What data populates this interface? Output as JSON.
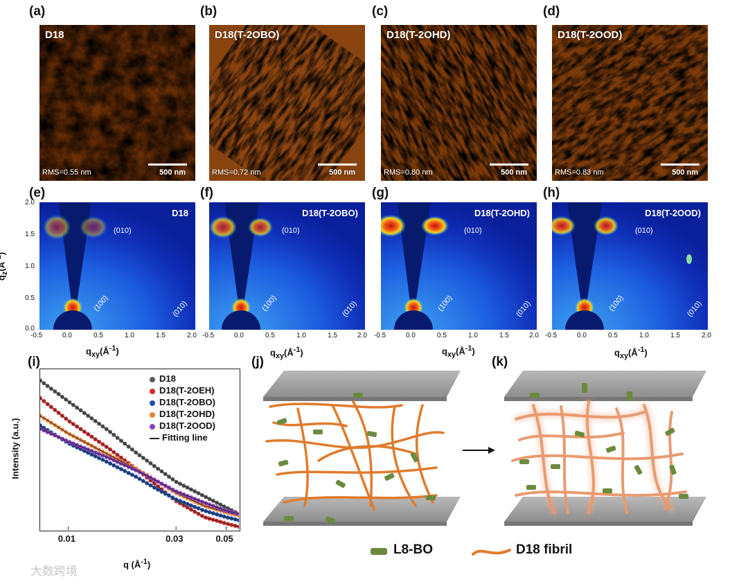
{
  "panels": {
    "a": {
      "label": "(a)",
      "title": "D18",
      "rms": "RMS=0.55 nm",
      "scale": "500 nm"
    },
    "b": {
      "label": "(b)",
      "title": "D18(T-2OBO)",
      "rms": "RMS=0.72 nm",
      "scale": "500 nm"
    },
    "c": {
      "label": "(c)",
      "title": "D18(T-2OHD)",
      "rms": "RMS=0.80 nm",
      "scale": "500 nm"
    },
    "d": {
      "label": "(d)",
      "title": "D18(T-2OOD)",
      "rms": "RMS=0.83 nm",
      "scale": "500 nm"
    },
    "e": {
      "label": "(e)",
      "title": "D18"
    },
    "f": {
      "label": "(f)",
      "title": "D18(T-2OBO)"
    },
    "g": {
      "label": "(g)",
      "title": "D18(T-2OHD)"
    },
    "h": {
      "label": "(h)",
      "title": "D18(T-2OOD)"
    },
    "i": {
      "label": "(i)"
    },
    "j": {
      "label": "(j)"
    },
    "k": {
      "label": "(k)"
    }
  },
  "giwaxs": {
    "reflections": {
      "r010_oop": "(010)",
      "r100": "(100)",
      "r010_ip": "(010)"
    },
    "x_ticks": [
      "-0.5",
      "0.0",
      "0.5",
      "1.0",
      "1.5",
      "2.0"
    ],
    "y_ticks": [
      "2.0",
      "1.5",
      "1.0",
      "0.5",
      "0.0"
    ],
    "ylabel_main": "q",
    "ylabel_sub": "z",
    "ylabel_unit": "(Å",
    "xlabel_main": "q",
    "xlabel_sub": "xy",
    "xlabel_unit": "(Å",
    "inv": "-1",
    "close": ")"
  },
  "chart_data": {
    "type": "scatter",
    "ylabel": "Intensity (a.u.)",
    "xlabel_main": "q (Å",
    "xlabel_sup": "-1",
    "xlabel_close": ")",
    "xscale": "log",
    "xlim": [
      0.0075,
      0.057
    ],
    "ylim": [
      0,
      1
    ],
    "x_ticks": [
      {
        "v": 0.01,
        "t": "0.01"
      },
      {
        "v": 0.03,
        "t": "0.03"
      },
      {
        "v": 0.05,
        "t": "0.05"
      }
    ],
    "series": [
      {
        "name": "D18",
        "color": "#5a5a5a",
        "values": [
          [
            0.0075,
            0.93
          ],
          [
            0.01,
            0.8
          ],
          [
            0.015,
            0.62
          ],
          [
            0.02,
            0.48
          ],
          [
            0.025,
            0.38
          ],
          [
            0.03,
            0.3
          ],
          [
            0.04,
            0.21
          ],
          [
            0.05,
            0.14
          ],
          [
            0.057,
            0.1
          ]
        ]
      },
      {
        "name": "D18(T-2OEH)",
        "color": "#d42a2a",
        "values": [
          [
            0.0075,
            0.82
          ],
          [
            0.01,
            0.68
          ],
          [
            0.015,
            0.51
          ],
          [
            0.02,
            0.38
          ],
          [
            0.025,
            0.27
          ],
          [
            0.03,
            0.18
          ],
          [
            0.04,
            0.08
          ],
          [
            0.05,
            0.04
          ],
          [
            0.057,
            0.02
          ]
        ]
      },
      {
        "name": "D18(T-2OBO)",
        "color": "#1f4fa8",
        "values": [
          [
            0.0075,
            0.65
          ],
          [
            0.01,
            0.54
          ],
          [
            0.015,
            0.42
          ],
          [
            0.02,
            0.33
          ],
          [
            0.025,
            0.25
          ],
          [
            0.03,
            0.19
          ],
          [
            0.04,
            0.12
          ],
          [
            0.05,
            0.08
          ],
          [
            0.057,
            0.06
          ]
        ]
      },
      {
        "name": "D18(T-2OHD)",
        "color": "#f08030",
        "values": [
          [
            0.0075,
            0.71
          ],
          [
            0.01,
            0.6
          ],
          [
            0.015,
            0.47
          ],
          [
            0.02,
            0.38
          ],
          [
            0.025,
            0.3
          ],
          [
            0.03,
            0.23
          ],
          [
            0.04,
            0.15
          ],
          [
            0.05,
            0.11
          ],
          [
            0.057,
            0.09
          ]
        ]
      },
      {
        "name": "D18(T-2OOD)",
        "color": "#8a3fbf",
        "values": [
          [
            0.0075,
            0.63
          ],
          [
            0.01,
            0.55
          ],
          [
            0.015,
            0.45
          ],
          [
            0.02,
            0.37
          ],
          [
            0.025,
            0.3
          ],
          [
            0.03,
            0.24
          ],
          [
            0.04,
            0.17
          ],
          [
            0.05,
            0.12
          ],
          [
            0.057,
            0.1
          ]
        ]
      }
    ],
    "fit_label": "Fitting line",
    "fit_color": "#222222"
  },
  "schematic": {
    "legend_acceptor": "L8-BO",
    "legend_fibril": "D18 fibril",
    "colors": {
      "fibril": "#e07b2c",
      "acceptor": "#6b8a3e",
      "plate": "#a9a9a9"
    }
  },
  "watermark": "大数跨境"
}
